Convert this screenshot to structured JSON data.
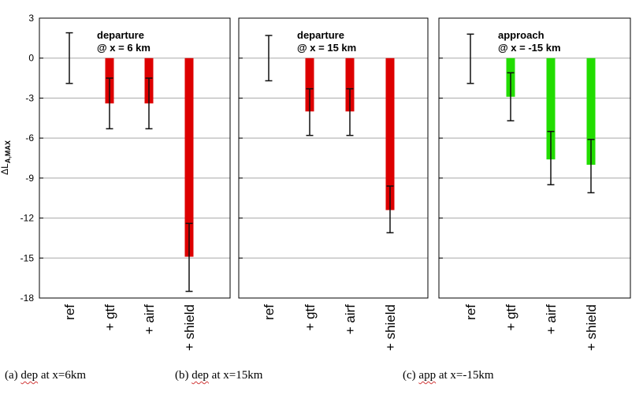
{
  "chart_data": [
    {
      "type": "bar",
      "panel": "a",
      "title_lines": [
        "departure",
        "@ x = 6 km"
      ],
      "categories": [
        "ref",
        "+ gtf",
        "+ airf",
        "+ shield"
      ],
      "values": [
        0,
        -3.4,
        -3.4,
        -14.9
      ],
      "error_low": [
        -1.9,
        -5.3,
        -5.3,
        -17.5
      ],
      "error_high": [
        1.9,
        -1.5,
        -1.5,
        -12.4
      ],
      "bar_color": "#dd0000",
      "ylabel": "ΔL",
      "ylabel_sub": "A,MAX",
      "ylim": [
        -18,
        3
      ],
      "yticks": [
        3,
        0,
        -3,
        -6,
        -9,
        -12,
        -15,
        -18
      ],
      "grid": true
    },
    {
      "type": "bar",
      "panel": "b",
      "title_lines": [
        "departure",
        "@ x = 15 km"
      ],
      "categories": [
        "ref",
        "+ gtf",
        "+ airf",
        "+ shield"
      ],
      "values": [
        0,
        -4.0,
        -4.0,
        -11.4
      ],
      "error_low": [
        -1.7,
        -5.8,
        -5.8,
        -13.1
      ],
      "error_high": [
        1.7,
        -2.3,
        -2.3,
        -9.6
      ],
      "bar_color": "#dd0000",
      "ylim": [
        -18,
        3
      ],
      "grid": true
    },
    {
      "type": "bar",
      "panel": "c",
      "title_lines": [
        "approach",
        "@ x = -15 km"
      ],
      "categories": [
        "ref",
        "+ gtf",
        "+ airf",
        "+ shield"
      ],
      "values": [
        0,
        -2.9,
        -7.6,
        -8.0
      ],
      "error_low": [
        -1.9,
        -4.7,
        -9.5,
        -10.1
      ],
      "error_high": [
        1.8,
        -1.1,
        -5.5,
        -6.1
      ],
      "bar_color": "#22dd00",
      "ylim": [
        -18,
        3
      ],
      "grid": true
    }
  ],
  "captions": [
    {
      "label": "(a) ",
      "abbr": "dep",
      "rest": " at x=6km"
    },
    {
      "label": "(b) ",
      "abbr": "dep",
      "rest": " at x=15km"
    },
    {
      "label": "(c) ",
      "abbr": "app",
      "rest": " at x=-15km"
    }
  ]
}
